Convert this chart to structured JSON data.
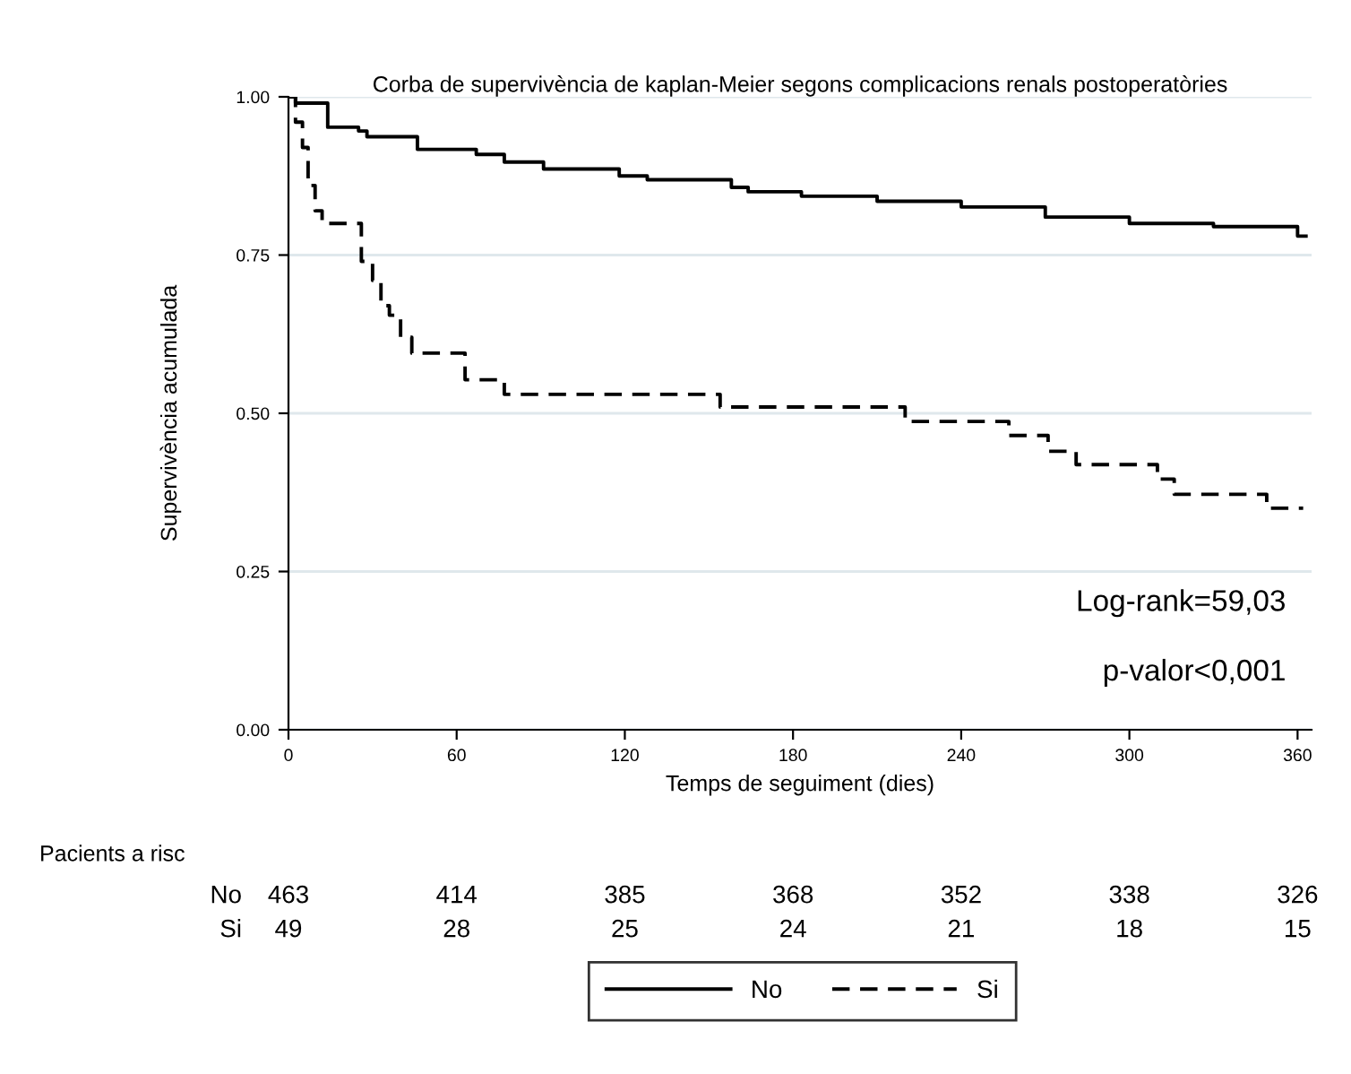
{
  "chart_data": {
    "type": "step",
    "title": "Corba de supervivència de kaplan-Meier segons complicacions renals postoperatòries",
    "xlabel": "Temps de seguiment (dies)",
    "ylabel": "Supervivència acumulada",
    "series": [
      {
        "name": "No",
        "color": "#000000",
        "line_style": "solid",
        "x": [
          0,
          2.5,
          14,
          25,
          28,
          46,
          67,
          77,
          91,
          118,
          128,
          158,
          164,
          183,
          210,
          240,
          270,
          300,
          330,
          360,
          363
        ],
        "values": [
          1.0,
          0.99,
          0.952,
          0.946,
          0.937,
          0.917,
          0.909,
          0.897,
          0.886,
          0.875,
          0.869,
          0.857,
          0.85,
          0.843,
          0.835,
          0.826,
          0.81,
          0.8,
          0.795,
          0.78,
          0.78
        ]
      },
      {
        "name": "Si",
        "color": "#000000",
        "line_style": "dashed",
        "x": [
          0,
          2.5,
          5,
          7,
          9.5,
          12,
          26,
          30,
          33,
          36,
          40,
          44,
          63,
          77,
          154,
          220,
          257,
          271,
          281,
          310,
          316,
          349,
          362
        ],
        "values": [
          1.0,
          0.96,
          0.92,
          0.86,
          0.82,
          0.8,
          0.74,
          0.71,
          0.67,
          0.655,
          0.62,
          0.595,
          0.553,
          0.53,
          0.51,
          0.487,
          0.465,
          0.44,
          0.419,
          0.396,
          0.372,
          0.35,
          0.35
        ]
      }
    ],
    "xlim": [
      0,
      365
    ],
    "xticks": [
      0,
      60,
      120,
      180,
      240,
      300,
      360
    ],
    "ylim": [
      0,
      1.0
    ],
    "yticks": [
      {
        "value": 0,
        "label": "0.00"
      },
      {
        "value": 0.25,
        "label": "0.25"
      },
      {
        "value": 0.5,
        "label": "0.50"
      },
      {
        "value": 0.75,
        "label": "0.75"
      },
      {
        "value": 1.0,
        "label": "1.00"
      }
    ],
    "grid": "y",
    "legend": "bottom",
    "annotations": [
      "Log-rank=59,03",
      "p-valor<0,001",
      "Pacients a risc",
      "No",
      "463",
      "414",
      "385",
      "368",
      "352",
      "338",
      "326",
      "Si",
      "49",
      "28",
      "25",
      "24",
      "21",
      "18",
      "15"
    ]
  }
}
